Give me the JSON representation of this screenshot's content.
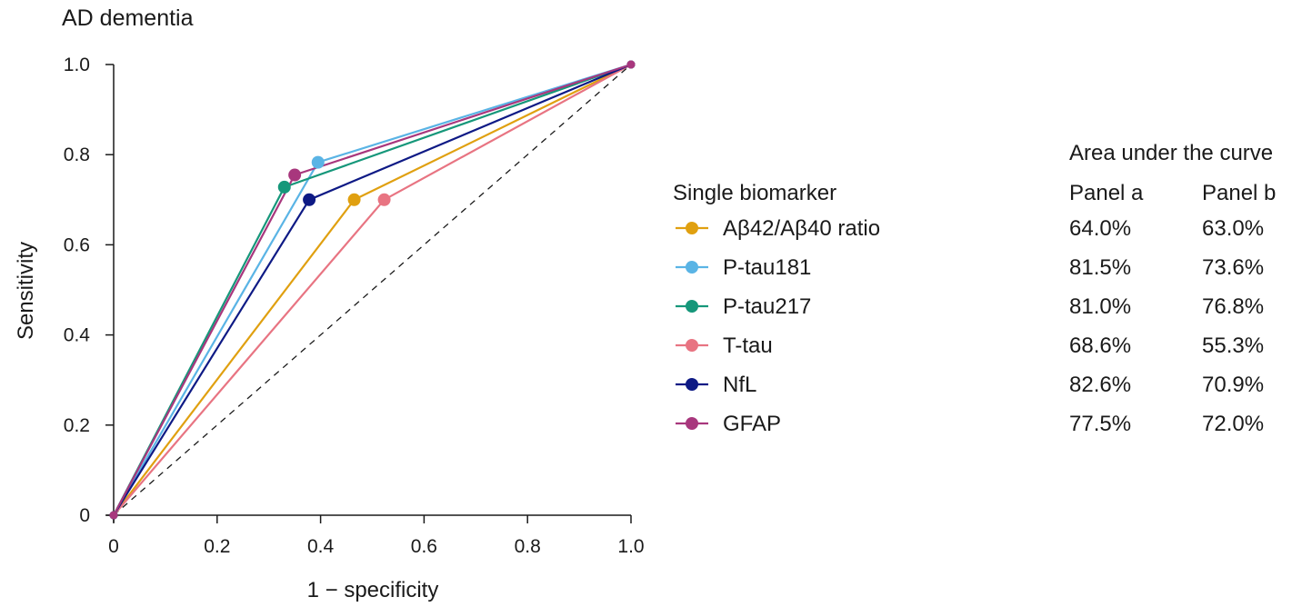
{
  "chart_data": {
    "type": "line",
    "title": "AD dementia",
    "xlabel": "1 − specificity",
    "ylabel": "Sensitivity",
    "xlim": [
      0,
      1
    ],
    "ylim": [
      0,
      1
    ],
    "xticks": [
      0,
      0.2,
      0.4,
      0.6,
      0.8,
      1.0
    ],
    "xtick_labels": [
      "0",
      "0.2",
      "0.4",
      "0.6",
      "0.8",
      "1.0"
    ],
    "yticks": [
      0,
      0.2,
      0.4,
      0.6,
      0.8,
      1.0
    ],
    "ytick_labels": [
      "0",
      "0.2",
      "0.4",
      "0.6",
      "0.8",
      "1.0"
    ],
    "reference_line": {
      "x": [
        0,
        1
      ],
      "y": [
        0,
        1
      ],
      "style": "dashed"
    },
    "legend": {
      "title": "Single biomarker",
      "auc_heading": "Area under the curve",
      "columns": [
        "Panel a",
        "Panel b"
      ],
      "placement": "right"
    },
    "series": [
      {
        "name": "Aβ42/Aβ40 ratio",
        "color": "#e0a010",
        "x": [
          0,
          0.465,
          1
        ],
        "y": [
          0,
          0.7,
          1
        ],
        "auc_panel_a": "64.0%",
        "auc_panel_b": "63.0%"
      },
      {
        "name": "P-tau181",
        "color": "#5ab4e5",
        "x": [
          0,
          0.395,
          1
        ],
        "y": [
          0,
          0.783,
          1
        ],
        "auc_panel_a": "81.5%",
        "auc_panel_b": "73.6%"
      },
      {
        "name": "P-tau217",
        "color": "#16977a",
        "x": [
          0,
          0.33,
          1
        ],
        "y": [
          0,
          0.728,
          1
        ],
        "auc_panel_a": "81.0%",
        "auc_panel_b": "76.8%"
      },
      {
        "name": "T-tau",
        "color": "#e87482",
        "x": [
          0,
          0.523,
          1
        ],
        "y": [
          0,
          0.7,
          1
        ],
        "auc_panel_a": "68.6%",
        "auc_panel_b": "55.3%"
      },
      {
        "name": "NfL",
        "color": "#0e1a85",
        "x": [
          0,
          0.378,
          1
        ],
        "y": [
          0,
          0.7,
          1
        ],
        "auc_panel_a": "82.6%",
        "auc_panel_b": "70.9%"
      },
      {
        "name": "GFAP",
        "color": "#a8377d",
        "x": [
          0,
          0.35,
          1
        ],
        "y": [
          0,
          0.755,
          1
        ],
        "auc_panel_a": "77.5%",
        "auc_panel_b": "72.0%"
      }
    ]
  }
}
